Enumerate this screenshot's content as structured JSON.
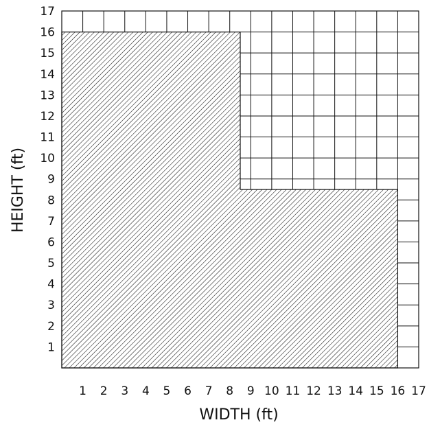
{
  "diagram": {
    "x_label": "WIDTH (ft)",
    "y_label": "HEIGHT (ft)",
    "x_range": [
      0,
      17
    ],
    "y_range": [
      0,
      17
    ],
    "x_ticks": [
      "1",
      "2",
      "3",
      "4",
      "5",
      "6",
      "7",
      "8",
      "9",
      "10",
      "11",
      "12",
      "13",
      "14",
      "15",
      "16",
      "17"
    ],
    "y_ticks": [
      "1",
      "2",
      "3",
      "4",
      "5",
      "6",
      "7",
      "8",
      "9",
      "10",
      "11",
      "12",
      "13",
      "14",
      "15",
      "16",
      "17"
    ],
    "grid": true,
    "shaded_region": {
      "fill": "diagonal-hatch",
      "color": "#111111",
      "vertices_ft": [
        [
          0,
          0
        ],
        [
          16,
          0
        ],
        [
          16,
          8.5
        ],
        [
          8.5,
          8.5
        ],
        [
          8.5,
          16
        ],
        [
          0,
          16
        ]
      ]
    }
  }
}
